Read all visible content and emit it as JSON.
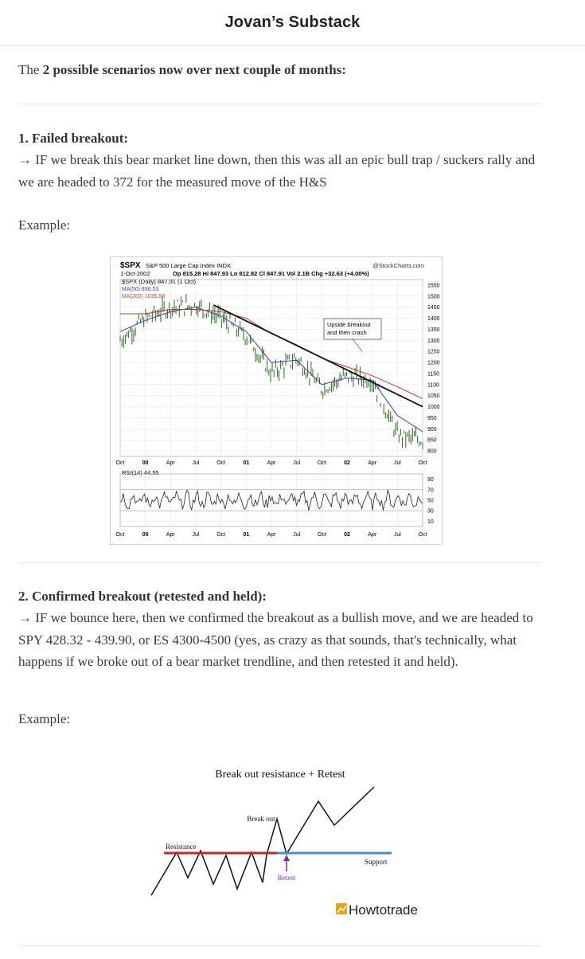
{
  "header": {
    "title": "Jovan’s Substack"
  },
  "intro": {
    "prefix": "The ",
    "bold": "2 possible scenarios now over next couple of months:"
  },
  "scenario1": {
    "heading": "1. Failed breakout:",
    "body": "→ IF we break this bear market line down, then this was all an epic bull trap / suckers rally and we are headed to 372 for the measured move of the H&S",
    "example_label": "Example:"
  },
  "scenario2": {
    "heading": "2. Confirmed breakout (retested and held):",
    "body": "→ IF we bounce here, then we confirmed the breakout as a bullish move, and we are headed to SPY 428.32 - 439.90, or ES 4300-4500 (yes, as crazy as that sounds, that's technically, what happens if we broke out of a bear market trendline, and then retested it and held).",
    "example_label": "Example:"
  },
  "stockchart": {
    "symbol": "$SPX",
    "name": "S&P 500 Large Cap Index INDX",
    "source": "@StockCharts.com",
    "date": "1-Oct-2002",
    "quote": "Op 815.28 Hi 847.93 Lo 812.82 Cl 847.91 Vol 2.1B Chg +32.63 (+4.00%)",
    "legend_price": "$SPX (Daily) 847.91 (1 Oct)",
    "legend_ma50": "MA(50) 886.53",
    "legend_ma200": "MA(200) 1035.88",
    "annotation": [
      "Upside breakout",
      "and then crash"
    ],
    "rsi_label": "RSI(14) 44.55",
    "colors": {
      "price": "#2a6b1e",
      "ma50": "#3a3ab8",
      "ma200": "#c0392b",
      "trendline": "#111111",
      "rsi": "#222222"
    }
  },
  "chart_data": {
    "type": "line",
    "title": "$SPX S&P 500 Large Cap Index INDX",
    "x_ticks": [
      "Oct",
      "00",
      "Apr",
      "Jul",
      "Oct",
      "01",
      "Apr",
      "Jul",
      "Oct",
      "02",
      "Apr",
      "Jul",
      "Oct"
    ],
    "y_ticks": [
      1550,
      1500,
      1450,
      1400,
      1350,
      1300,
      1250,
      1200,
      1150,
      1100,
      1050,
      1000,
      950,
      900,
      850,
      800
    ],
    "ylim": [
      775,
      1575
    ],
    "rsi_ticks": [
      90,
      70,
      50,
      30,
      10
    ],
    "series": [
      {
        "name": "$SPX (Daily) 847.91 (1 Oct)",
        "x": [
          0,
          1,
          2,
          3,
          4,
          5,
          6,
          7,
          8,
          9,
          10,
          11,
          12
        ],
        "values": [
          1300,
          1400,
          1450,
          1460,
          1400,
          1320,
          1150,
          1220,
          1080,
          1140,
          1120,
          870,
          848
        ]
      },
      {
        "name": "MA(50) 886.53",
        "x": [
          0,
          1,
          2,
          3,
          4,
          5,
          6,
          7,
          8,
          9,
          10,
          11,
          12
        ],
        "values": [
          1340,
          1390,
          1430,
          1450,
          1410,
          1340,
          1200,
          1210,
          1100,
          1130,
          1120,
          960,
          887
        ]
      },
      {
        "name": "MA(200) 1035.88",
        "x": [
          0,
          1,
          2,
          3,
          4,
          5,
          6,
          7,
          8,
          9,
          10,
          11,
          12
        ],
        "values": [
          1420,
          1420,
          1440,
          1440,
          1430,
          1400,
          1330,
          1280,
          1220,
          1180,
          1140,
          1090,
          1036
        ]
      }
    ]
  },
  "diagram": {
    "title": "Break out resistance + Retest",
    "label_breakout": "Break out",
    "label_resistance": "Resistance",
    "label_support": "Support",
    "label_retest": "Retest",
    "logo_text": "Howtotrade",
    "colors": {
      "resistance": "#c0282d",
      "support": "#4a8fc9",
      "arrow": "#7b2ea0",
      "logo": "#e8a317"
    }
  }
}
